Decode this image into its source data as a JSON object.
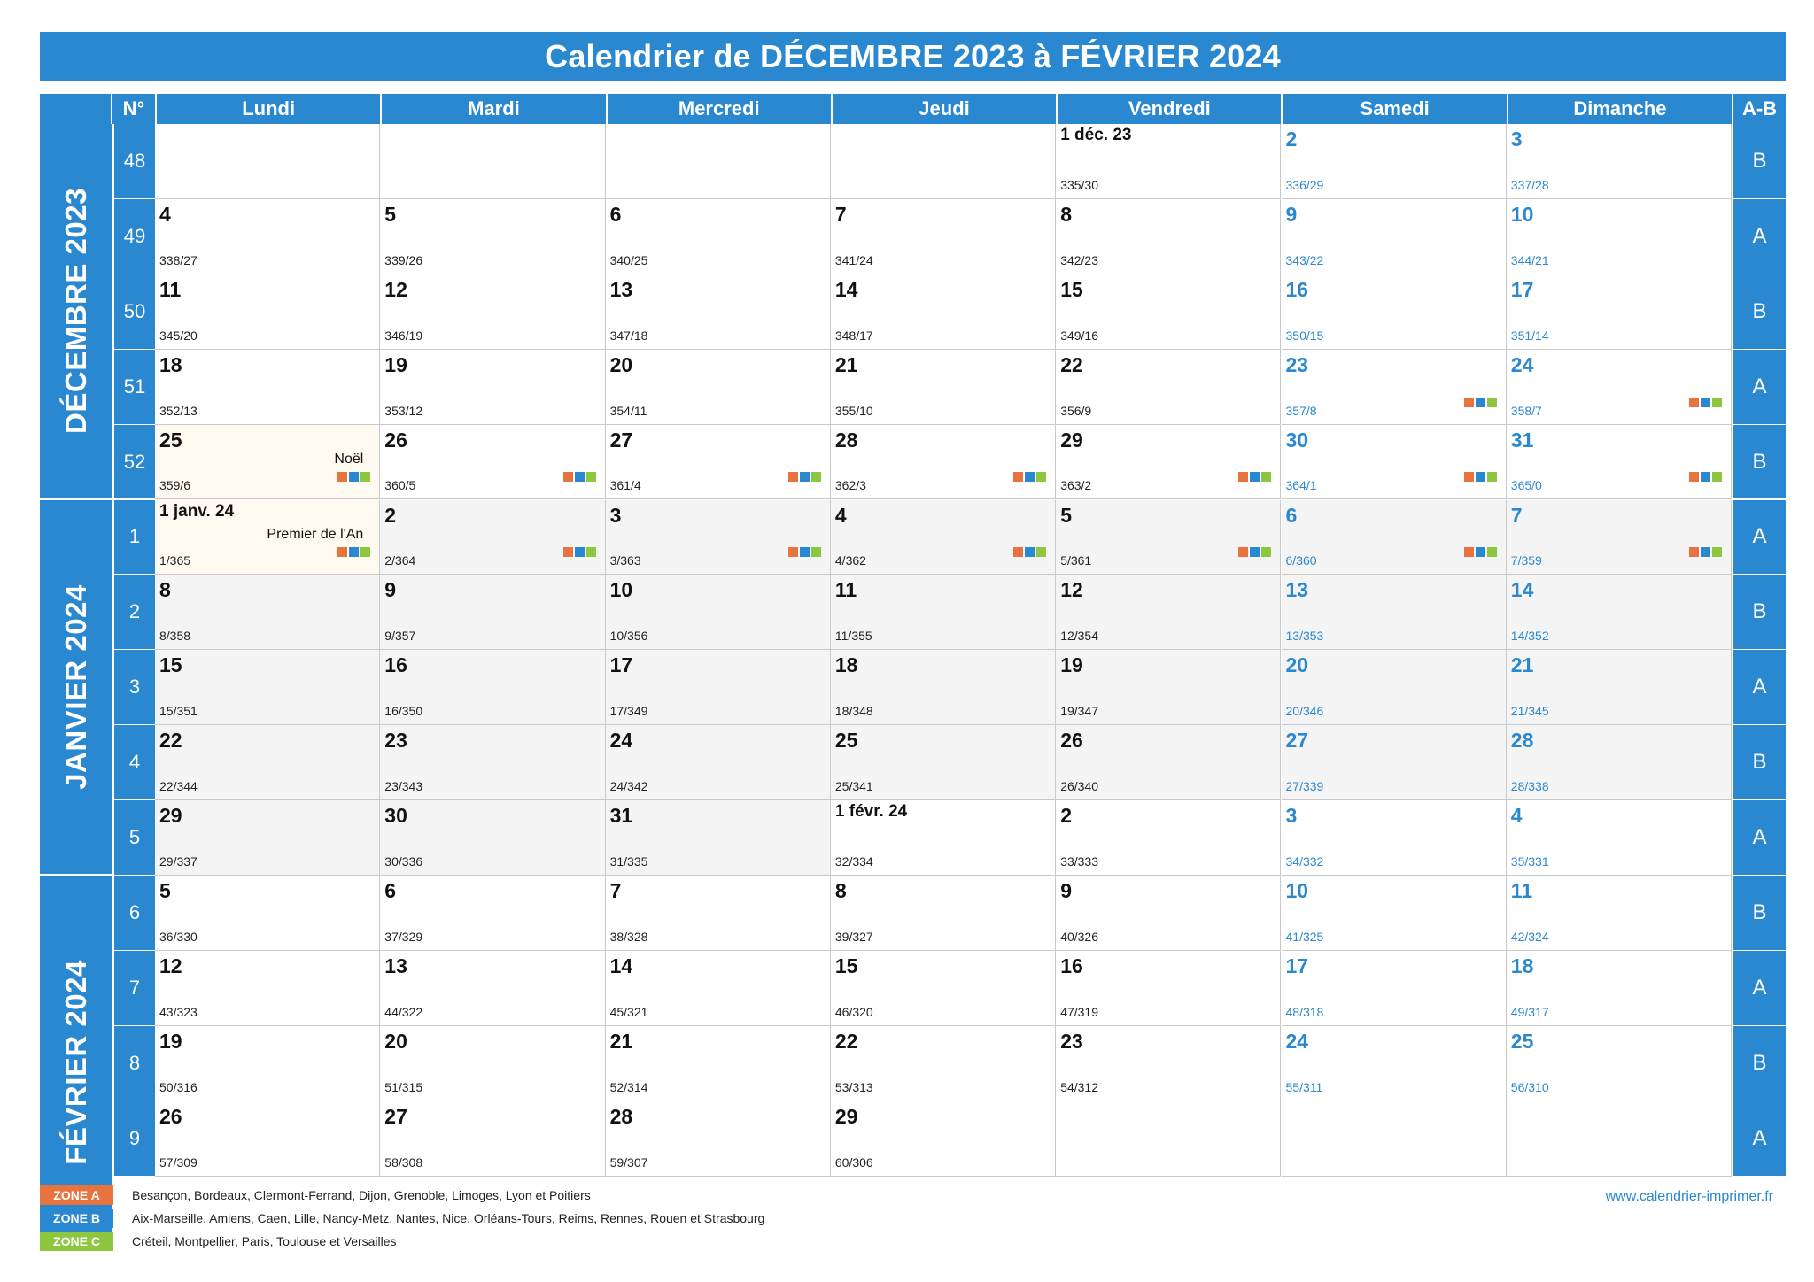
{
  "title": "Calendrier de DÉCEMBRE 2023 à FÉVRIER 2024",
  "colors": {
    "accent": "#2a88d1",
    "zone_a": "#e8733f",
    "zone_b": "#2a88d1",
    "zone_c": "#8dc63f"
  },
  "header": {
    "week_no": "N°",
    "ab": "A-B",
    "days": [
      "Lundi",
      "Mardi",
      "Mercredi",
      "Jeudi",
      "Vendredi",
      "Samedi",
      "Dimanche"
    ]
  },
  "months": [
    {
      "label": "DÉCEMBRE 2023",
      "rows": 5
    },
    {
      "label": "JANVIER 2024",
      "rows": 5
    },
    {
      "label": "FÉVRIER 2024",
      "rows": 5
    }
  ],
  "weeks": [
    {
      "no": "48",
      "ab": "B",
      "days": [
        null,
        null,
        null,
        null,
        {
          "d": "1 déc. 23",
          "s": "335/30"
        },
        {
          "d": "2",
          "s": "336/29"
        },
        {
          "d": "3",
          "s": "337/28"
        }
      ]
    },
    {
      "no": "49",
      "ab": "A",
      "days": [
        {
          "d": "4",
          "s": "338/27"
        },
        {
          "d": "5",
          "s": "339/26"
        },
        {
          "d": "6",
          "s": "340/25"
        },
        {
          "d": "7",
          "s": "341/24"
        },
        {
          "d": "8",
          "s": "342/23"
        },
        {
          "d": "9",
          "s": "343/22"
        },
        {
          "d": "10",
          "s": "344/21"
        }
      ]
    },
    {
      "no": "50",
      "ab": "B",
      "days": [
        {
          "d": "11",
          "s": "345/20"
        },
        {
          "d": "12",
          "s": "346/19"
        },
        {
          "d": "13",
          "s": "347/18"
        },
        {
          "d": "14",
          "s": "348/17"
        },
        {
          "d": "15",
          "s": "349/16"
        },
        {
          "d": "16",
          "s": "350/15"
        },
        {
          "d": "17",
          "s": "351/14"
        }
      ]
    },
    {
      "no": "51",
      "ab": "A",
      "days": [
        {
          "d": "18",
          "s": "352/13"
        },
        {
          "d": "19",
          "s": "353/12"
        },
        {
          "d": "20",
          "s": "354/11"
        },
        {
          "d": "21",
          "s": "355/10"
        },
        {
          "d": "22",
          "s": "356/9"
        },
        {
          "d": "23",
          "s": "357/8",
          "z": true
        },
        {
          "d": "24",
          "s": "358/7",
          "z": true
        }
      ]
    },
    {
      "no": "52",
      "ab": "B",
      "days": [
        {
          "d": "25",
          "s": "359/6",
          "h": "Noël",
          "z": true
        },
        {
          "d": "26",
          "s": "360/5",
          "z": true
        },
        {
          "d": "27",
          "s": "361/4",
          "z": true
        },
        {
          "d": "28",
          "s": "362/3",
          "z": true
        },
        {
          "d": "29",
          "s": "363/2",
          "z": true
        },
        {
          "d": "30",
          "s": "364/1",
          "z": true
        },
        {
          "d": "31",
          "s": "365/0",
          "z": true
        }
      ]
    },
    {
      "no": "1",
      "ab": "A",
      "days": [
        {
          "d": "1 janv. 24",
          "s": "1/365",
          "h": "Premier de l'An",
          "z": true
        },
        {
          "d": "2",
          "s": "2/364",
          "z": true
        },
        {
          "d": "3",
          "s": "3/363",
          "z": true
        },
        {
          "d": "4",
          "s": "4/362",
          "z": true
        },
        {
          "d": "5",
          "s": "5/361",
          "z": true
        },
        {
          "d": "6",
          "s": "6/360",
          "z": true
        },
        {
          "d": "7",
          "s": "7/359",
          "z": true
        }
      ]
    },
    {
      "no": "2",
      "ab": "B",
      "days": [
        {
          "d": "8",
          "s": "8/358"
        },
        {
          "d": "9",
          "s": "9/357"
        },
        {
          "d": "10",
          "s": "10/356"
        },
        {
          "d": "11",
          "s": "11/355"
        },
        {
          "d": "12",
          "s": "12/354"
        },
        {
          "d": "13",
          "s": "13/353"
        },
        {
          "d": "14",
          "s": "14/352"
        }
      ]
    },
    {
      "no": "3",
      "ab": "A",
      "days": [
        {
          "d": "15",
          "s": "15/351"
        },
        {
          "d": "16",
          "s": "16/350"
        },
        {
          "d": "17",
          "s": "17/349"
        },
        {
          "d": "18",
          "s": "18/348"
        },
        {
          "d": "19",
          "s": "19/347"
        },
        {
          "d": "20",
          "s": "20/346"
        },
        {
          "d": "21",
          "s": "21/345"
        }
      ]
    },
    {
      "no": "4",
      "ab": "B",
      "days": [
        {
          "d": "22",
          "s": "22/344"
        },
        {
          "d": "23",
          "s": "23/343"
        },
        {
          "d": "24",
          "s": "24/342"
        },
        {
          "d": "25",
          "s": "25/341"
        },
        {
          "d": "26",
          "s": "26/340"
        },
        {
          "d": "27",
          "s": "27/339"
        },
        {
          "d": "28",
          "s": "28/338"
        }
      ]
    },
    {
      "no": "5",
      "ab": "A",
      "days": [
        {
          "d": "29",
          "s": "29/337"
        },
        {
          "d": "30",
          "s": "30/336"
        },
        {
          "d": "31",
          "s": "31/335"
        },
        {
          "d": "1 févr. 24",
          "s": "32/334"
        },
        {
          "d": "2",
          "s": "33/333"
        },
        {
          "d": "3",
          "s": "34/332"
        },
        {
          "d": "4",
          "s": "35/331"
        }
      ]
    },
    {
      "no": "6",
      "ab": "B",
      "days": [
        {
          "d": "5",
          "s": "36/330"
        },
        {
          "d": "6",
          "s": "37/329"
        },
        {
          "d": "7",
          "s": "38/328"
        },
        {
          "d": "8",
          "s": "39/327"
        },
        {
          "d": "9",
          "s": "40/326"
        },
        {
          "d": "10",
          "s": "41/325"
        },
        {
          "d": "11",
          "s": "42/324"
        }
      ]
    },
    {
      "no": "7",
      "ab": "A",
      "days": [
        {
          "d": "12",
          "s": "43/323"
        },
        {
          "d": "13",
          "s": "44/322"
        },
        {
          "d": "14",
          "s": "45/321"
        },
        {
          "d": "15",
          "s": "46/320"
        },
        {
          "d": "16",
          "s": "47/319"
        },
        {
          "d": "17",
          "s": "48/318"
        },
        {
          "d": "18",
          "s": "49/317"
        }
      ]
    },
    {
      "no": "8",
      "ab": "B",
      "days": [
        {
          "d": "19",
          "s": "50/316"
        },
        {
          "d": "20",
          "s": "51/315"
        },
        {
          "d": "21",
          "s": "52/314"
        },
        {
          "d": "22",
          "s": "53/313"
        },
        {
          "d": "23",
          "s": "54/312"
        },
        {
          "d": "24",
          "s": "55/311"
        },
        {
          "d": "25",
          "s": "56/310"
        }
      ]
    },
    {
      "no": "9",
      "ab": "A",
      "days": [
        {
          "d": "26",
          "s": "57/309"
        },
        {
          "d": "27",
          "s": "58/308"
        },
        {
          "d": "28",
          "s": "59/307"
        },
        {
          "d": "29",
          "s": "60/306"
        },
        null,
        null,
        null
      ]
    }
  ],
  "legend": [
    {
      "tag": "ZONE A",
      "text": "Besançon, Bordeaux, Clermont-Ferrand, Dijon, Grenoble, Limoges, Lyon et Poitiers"
    },
    {
      "tag": "ZONE B",
      "text": "Aix-Marseille, Amiens, Caen, Lille, Nancy-Metz, Nantes, Nice, Orléans-Tours, Reims, Rennes, Rouen et Strasbourg"
    },
    {
      "tag": "ZONE C",
      "text": "Créteil, Montpellier, Paris, Toulouse et Versailles"
    }
  ],
  "website": "www.calendrier-imprimer.fr"
}
